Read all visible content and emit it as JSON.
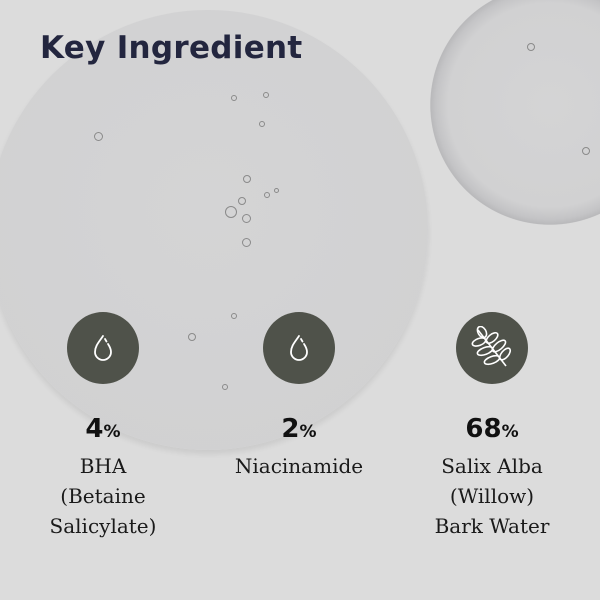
{
  "title": "Key Ingredient",
  "ingredients": [
    {
      "percent": "4",
      "unit": "%",
      "lines": [
        "BHA",
        "(Betaine",
        "Salicylate)"
      ],
      "icon": "water-drop-icon"
    },
    {
      "percent": "2",
      "unit": "%",
      "lines": [
        "Niacinamide"
      ],
      "icon": "water-drop-icon"
    },
    {
      "percent": "68",
      "unit": "%",
      "lines": [
        "Salix Alba",
        "(Willow)",
        "Bark Water"
      ],
      "icon": "leaf-branch-icon"
    }
  ],
  "colors": {
    "background": "#dcdcdc",
    "title": "#23263f",
    "icon_circle": "#4f524a"
  }
}
